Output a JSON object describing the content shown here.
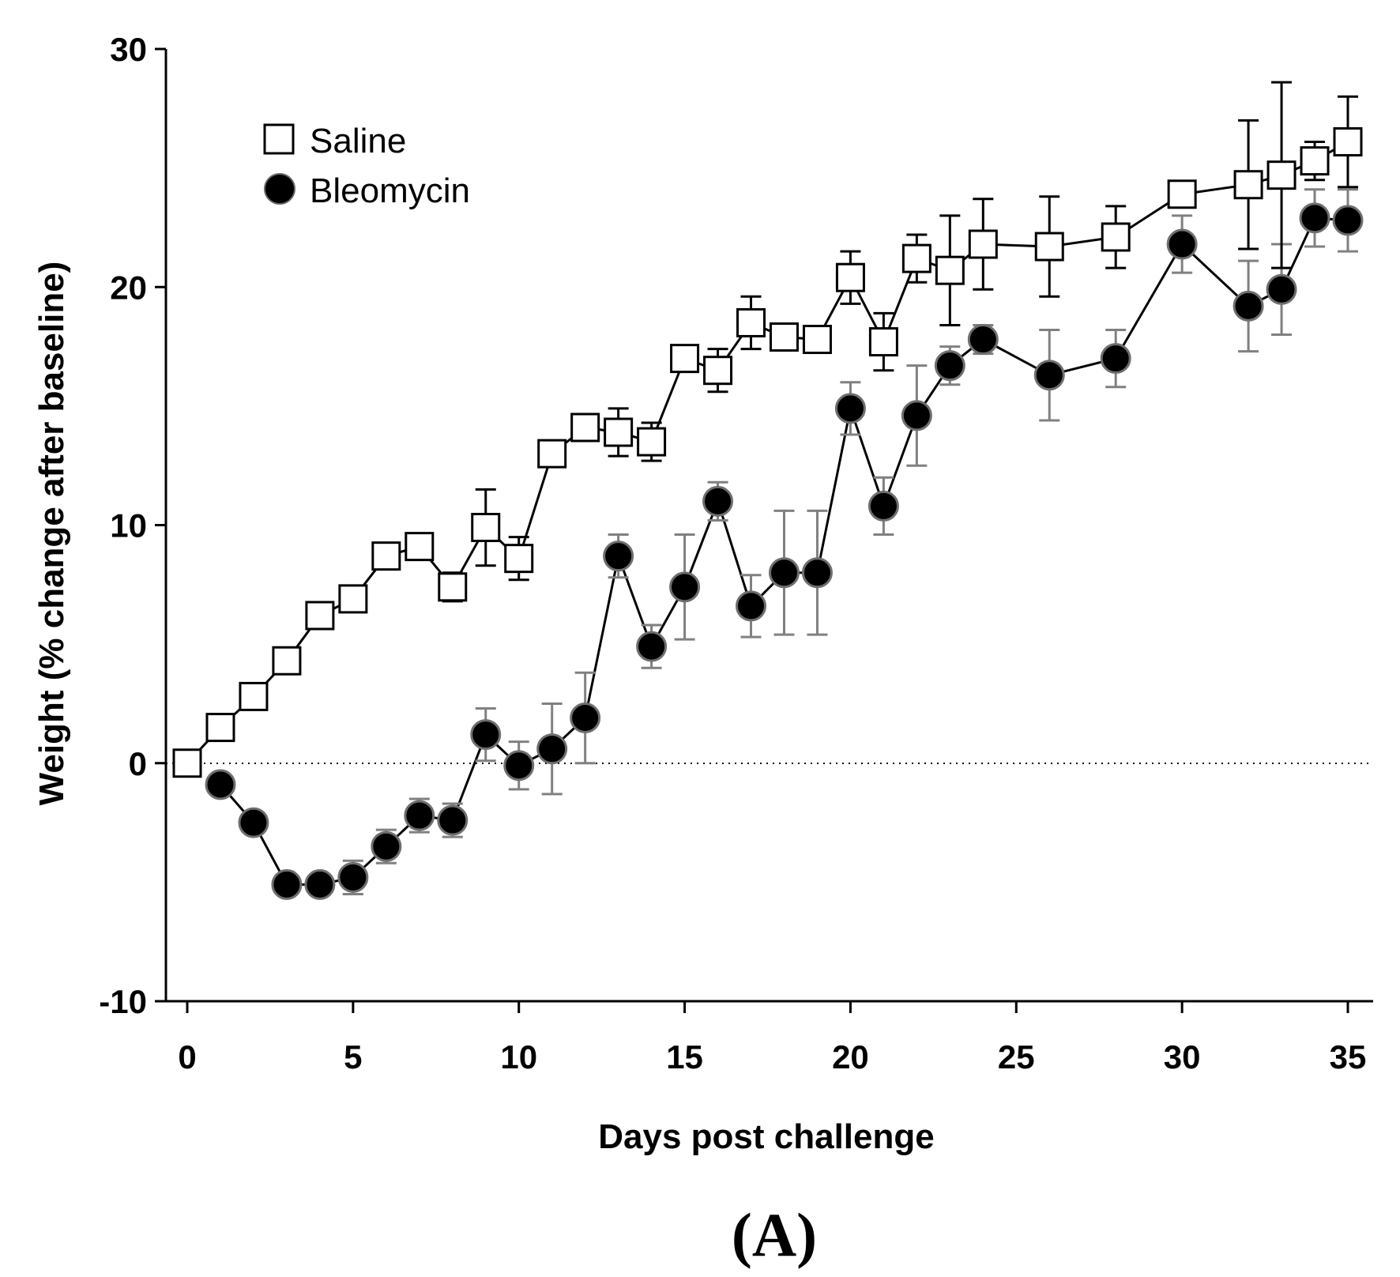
{
  "chart_data": {
    "type": "line",
    "title": "",
    "panel_label": "(A)",
    "xlabel": "Days post challenge",
    "ylabel": "Weight (% change after baseline)",
    "xlim": [
      0,
      35
    ],
    "ylim": [
      -10,
      30
    ],
    "xticks": [
      0,
      5,
      10,
      15,
      20,
      25,
      30,
      35
    ],
    "yticks": [
      -10,
      0,
      10,
      20,
      30
    ],
    "xtick_labels": [
      "0",
      "5",
      "10",
      "15",
      "20",
      "25",
      "30",
      "35"
    ],
    "ytick_labels": [
      "-10",
      "0",
      "10",
      "20",
      "30"
    ],
    "reference_line": {
      "y": 0,
      "style": "dotted"
    },
    "grid": false,
    "legend_position": "top-left",
    "colors": {
      "saline_stroke": "#000000",
      "saline_fill": "#ffffff",
      "bleomycin_fill": "#000000",
      "bleomycin_err": "#808080",
      "line": "#000000"
    },
    "series": [
      {
        "name": "Saline",
        "marker": "open-square",
        "x": [
          0,
          1,
          2,
          3,
          4,
          5,
          6,
          7,
          8,
          9,
          10,
          11,
          12,
          13,
          14,
          15,
          16,
          17,
          18,
          19,
          20,
          21,
          22,
          23,
          24,
          26,
          28,
          30,
          32,
          33,
          34,
          35
        ],
        "y": [
          0,
          1.5,
          2.8,
          4.3,
          6.2,
          6.9,
          8.7,
          9.1,
          7.4,
          9.9,
          8.6,
          13.0,
          14.1,
          13.9,
          13.5,
          17.0,
          16.5,
          18.5,
          17.9,
          17.8,
          20.4,
          17.7,
          21.2,
          20.7,
          21.8,
          21.7,
          22.1,
          23.9,
          24.3,
          24.7,
          25.3,
          26.1
        ],
        "err": [
          0,
          0,
          0,
          0,
          0,
          0,
          0,
          0,
          0.6,
          1.6,
          0.9,
          0,
          0,
          1.0,
          0.8,
          0.4,
          0.9,
          1.1,
          0,
          0,
          1.1,
          1.2,
          1.0,
          2.3,
          1.9,
          2.1,
          1.3,
          0,
          2.7,
          3.9,
          0.8,
          1.9
        ]
      },
      {
        "name": "Bleomycin",
        "marker": "filled-circle",
        "x": [
          1,
          2,
          3,
          4,
          5,
          6,
          7,
          8,
          9,
          10,
          11,
          12,
          13,
          14,
          15,
          16,
          17,
          18,
          19,
          20,
          21,
          22,
          23,
          24,
          26,
          28,
          30,
          32,
          33,
          34,
          35
        ],
        "y": [
          -0.9,
          -2.5,
          -5.1,
          -5.1,
          -4.8,
          -3.5,
          -2.2,
          -2.4,
          1.2,
          -0.1,
          0.6,
          1.9,
          8.7,
          4.9,
          7.4,
          11.0,
          6.6,
          8.0,
          8.0,
          14.9,
          10.8,
          14.6,
          16.7,
          17.8,
          16.3,
          17.0,
          21.8,
          19.2,
          19.9,
          22.9,
          22.8
        ],
        "err": [
          0,
          0,
          0,
          0,
          0.7,
          0.7,
          0.7,
          0.7,
          1.1,
          1.0,
          1.9,
          1.9,
          0.9,
          0.9,
          2.2,
          0.8,
          1.3,
          2.6,
          2.6,
          1.1,
          1.2,
          2.1,
          0.8,
          0.6,
          1.9,
          1.2,
          1.2,
          1.9,
          1.9,
          1.2,
          1.3
        ]
      }
    ]
  }
}
